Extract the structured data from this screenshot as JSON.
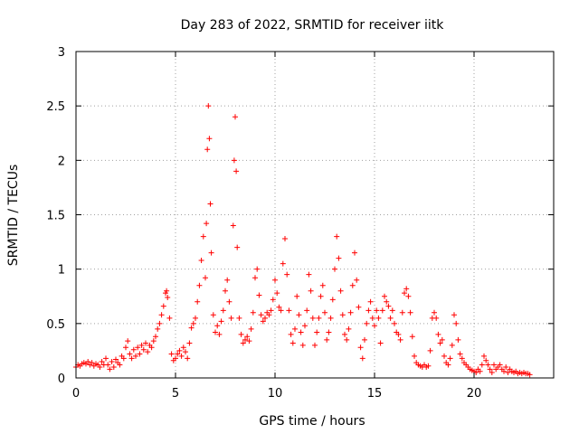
{
  "chart_data": {
    "type": "scatter",
    "title": "Day 283 of 2022, SRMTID for receiver iitk",
    "xlabel": "GPS time / hours",
    "ylabel": "SRMTID / TECUs",
    "xlim": [
      0,
      24
    ],
    "ylim": [
      0,
      3
    ],
    "xticks": [
      0,
      5,
      10,
      15,
      20
    ],
    "xtick_labels": [
      "0",
      "5",
      "10",
      "15",
      "20"
    ],
    "yticks": [
      0,
      0.5,
      1,
      1.5,
      2,
      2.5,
      3
    ],
    "ytick_labels": [
      "0",
      "0.5",
      "1",
      "1.5",
      "2",
      "2.5",
      "3"
    ],
    "grid": true,
    "marker": "+",
    "color": "#ff0000",
    "series": [
      {
        "name": "SRMTID",
        "points": [
          [
            0.0,
            0.1
          ],
          [
            0.1,
            0.12
          ],
          [
            0.2,
            0.11
          ],
          [
            0.3,
            0.13
          ],
          [
            0.4,
            0.14
          ],
          [
            0.5,
            0.13
          ],
          [
            0.6,
            0.15
          ],
          [
            0.7,
            0.12
          ],
          [
            0.8,
            0.14
          ],
          [
            0.9,
            0.11
          ],
          [
            1.0,
            0.13
          ],
          [
            1.1,
            0.12
          ],
          [
            1.2,
            0.1
          ],
          [
            1.3,
            0.15
          ],
          [
            1.4,
            0.12
          ],
          [
            1.5,
            0.18
          ],
          [
            1.6,
            0.12
          ],
          [
            1.7,
            0.08
          ],
          [
            1.8,
            0.15
          ],
          [
            1.9,
            0.1
          ],
          [
            2.0,
            0.17
          ],
          [
            2.1,
            0.14
          ],
          [
            2.2,
            0.12
          ],
          [
            2.3,
            0.2
          ],
          [
            2.4,
            0.18
          ],
          [
            2.5,
            0.28
          ],
          [
            2.6,
            0.34
          ],
          [
            2.7,
            0.22
          ],
          [
            2.8,
            0.18
          ],
          [
            2.9,
            0.26
          ],
          [
            3.0,
            0.2
          ],
          [
            3.1,
            0.28
          ],
          [
            3.2,
            0.22
          ],
          [
            3.3,
            0.3
          ],
          [
            3.4,
            0.26
          ],
          [
            3.5,
            0.32
          ],
          [
            3.6,
            0.24
          ],
          [
            3.7,
            0.3
          ],
          [
            3.8,
            0.28
          ],
          [
            3.9,
            0.34
          ],
          [
            4.0,
            0.38
          ],
          [
            4.1,
            0.45
          ],
          [
            4.2,
            0.5
          ],
          [
            4.3,
            0.58
          ],
          [
            4.4,
            0.66
          ],
          [
            4.5,
            0.78
          ],
          [
            4.55,
            0.8
          ],
          [
            4.6,
            0.74
          ],
          [
            4.7,
            0.55
          ],
          [
            4.8,
            0.22
          ],
          [
            4.9,
            0.16
          ],
          [
            5.0,
            0.18
          ],
          [
            5.1,
            0.22
          ],
          [
            5.2,
            0.25
          ],
          [
            5.3,
            0.2
          ],
          [
            5.4,
            0.28
          ],
          [
            5.5,
            0.24
          ],
          [
            5.6,
            0.18
          ],
          [
            5.7,
            0.32
          ],
          [
            5.8,
            0.46
          ],
          [
            5.9,
            0.5
          ],
          [
            6.0,
            0.55
          ],
          [
            6.1,
            0.7
          ],
          [
            6.2,
            0.85
          ],
          [
            6.3,
            1.08
          ],
          [
            6.4,
            1.3
          ],
          [
            6.5,
            0.92
          ],
          [
            6.55,
            1.42
          ],
          [
            6.6,
            2.1
          ],
          [
            6.65,
            2.5
          ],
          [
            6.7,
            2.2
          ],
          [
            6.75,
            1.6
          ],
          [
            6.8,
            1.15
          ],
          [
            6.9,
            0.58
          ],
          [
            7.0,
            0.42
          ],
          [
            7.1,
            0.48
          ],
          [
            7.2,
            0.4
          ],
          [
            7.3,
            0.52
          ],
          [
            7.4,
            0.62
          ],
          [
            7.5,
            0.8
          ],
          [
            7.6,
            0.9
          ],
          [
            7.7,
            0.7
          ],
          [
            7.8,
            0.55
          ],
          [
            7.9,
            1.4
          ],
          [
            7.95,
            2.0
          ],
          [
            8.0,
            2.4
          ],
          [
            8.05,
            1.9
          ],
          [
            8.1,
            1.2
          ],
          [
            8.2,
            0.55
          ],
          [
            8.3,
            0.4
          ],
          [
            8.4,
            0.32
          ],
          [
            8.5,
            0.35
          ],
          [
            8.6,
            0.38
          ],
          [
            8.7,
            0.34
          ],
          [
            8.8,
            0.45
          ],
          [
            8.9,
            0.6
          ],
          [
            9.0,
            0.92
          ],
          [
            9.1,
            1.0
          ],
          [
            9.2,
            0.76
          ],
          [
            9.3,
            0.58
          ],
          [
            9.4,
            0.52
          ],
          [
            9.5,
            0.55
          ],
          [
            9.6,
            0.6
          ],
          [
            9.7,
            0.58
          ],
          [
            9.8,
            0.62
          ],
          [
            9.9,
            0.72
          ],
          [
            10.0,
            0.9
          ],
          [
            10.1,
            0.78
          ],
          [
            10.2,
            0.65
          ],
          [
            10.3,
            0.62
          ],
          [
            10.4,
            1.05
          ],
          [
            10.5,
            1.28
          ],
          [
            10.6,
            0.95
          ],
          [
            10.7,
            0.62
          ],
          [
            10.8,
            0.4
          ],
          [
            10.9,
            0.32
          ],
          [
            11.0,
            0.45
          ],
          [
            11.1,
            0.75
          ],
          [
            11.2,
            0.58
          ],
          [
            11.3,
            0.42
          ],
          [
            11.4,
            0.3
          ],
          [
            11.5,
            0.48
          ],
          [
            11.6,
            0.62
          ],
          [
            11.7,
            0.95
          ],
          [
            11.8,
            0.8
          ],
          [
            11.9,
            0.55
          ],
          [
            12.0,
            0.3
          ],
          [
            12.1,
            0.42
          ],
          [
            12.2,
            0.55
          ],
          [
            12.3,
            0.75
          ],
          [
            12.4,
            0.85
          ],
          [
            12.5,
            0.6
          ],
          [
            12.6,
            0.35
          ],
          [
            12.7,
            0.42
          ],
          [
            12.8,
            0.55
          ],
          [
            12.9,
            0.72
          ],
          [
            13.0,
            1.0
          ],
          [
            13.1,
            1.3
          ],
          [
            13.2,
            1.1
          ],
          [
            13.3,
            0.8
          ],
          [
            13.4,
            0.58
          ],
          [
            13.5,
            0.4
          ],
          [
            13.6,
            0.35
          ],
          [
            13.7,
            0.45
          ],
          [
            13.8,
            0.6
          ],
          [
            13.9,
            0.85
          ],
          [
            14.0,
            1.15
          ],
          [
            14.1,
            0.9
          ],
          [
            14.2,
            0.65
          ],
          [
            14.3,
            0.28
          ],
          [
            14.4,
            0.18
          ],
          [
            14.5,
            0.35
          ],
          [
            14.6,
            0.5
          ],
          [
            14.7,
            0.62
          ],
          [
            14.8,
            0.7
          ],
          [
            14.9,
            0.55
          ],
          [
            15.0,
            0.48
          ],
          [
            15.1,
            0.62
          ],
          [
            15.2,
            0.55
          ],
          [
            15.3,
            0.32
          ],
          [
            15.4,
            0.62
          ],
          [
            15.5,
            0.75
          ],
          [
            15.6,
            0.7
          ],
          [
            15.7,
            0.66
          ],
          [
            15.8,
            0.55
          ],
          [
            15.9,
            0.62
          ],
          [
            16.0,
            0.5
          ],
          [
            16.1,
            0.42
          ],
          [
            16.2,
            0.4
          ],
          [
            16.3,
            0.35
          ],
          [
            16.4,
            0.6
          ],
          [
            16.5,
            0.78
          ],
          [
            16.6,
            0.82
          ],
          [
            16.7,
            0.75
          ],
          [
            16.8,
            0.6
          ],
          [
            16.9,
            0.38
          ],
          [
            17.0,
            0.2
          ],
          [
            17.1,
            0.14
          ],
          [
            17.2,
            0.12
          ],
          [
            17.3,
            0.11
          ],
          [
            17.4,
            0.1
          ],
          [
            17.5,
            0.12
          ],
          [
            17.6,
            0.1
          ],
          [
            17.7,
            0.11
          ],
          [
            17.8,
            0.25
          ],
          [
            17.9,
            0.55
          ],
          [
            18.0,
            0.6
          ],
          [
            18.1,
            0.55
          ],
          [
            18.2,
            0.4
          ],
          [
            18.3,
            0.32
          ],
          [
            18.4,
            0.35
          ],
          [
            18.5,
            0.2
          ],
          [
            18.6,
            0.14
          ],
          [
            18.7,
            0.12
          ],
          [
            18.8,
            0.18
          ],
          [
            18.9,
            0.3
          ],
          [
            19.0,
            0.58
          ],
          [
            19.1,
            0.5
          ],
          [
            19.2,
            0.35
          ],
          [
            19.3,
            0.22
          ],
          [
            19.4,
            0.18
          ],
          [
            19.5,
            0.14
          ],
          [
            19.6,
            0.12
          ],
          [
            19.7,
            0.1
          ],
          [
            19.8,
            0.08
          ],
          [
            19.9,
            0.07
          ],
          [
            20.0,
            0.06
          ],
          [
            20.1,
            0.05
          ],
          [
            20.2,
            0.08
          ],
          [
            20.3,
            0.06
          ],
          [
            20.4,
            0.12
          ],
          [
            20.5,
            0.2
          ],
          [
            20.6,
            0.16
          ],
          [
            20.7,
            0.12
          ],
          [
            20.8,
            0.08
          ],
          [
            20.9,
            0.05
          ],
          [
            21.0,
            0.12
          ],
          [
            21.1,
            0.08
          ],
          [
            21.2,
            0.1
          ],
          [
            21.3,
            0.12
          ],
          [
            21.4,
            0.08
          ],
          [
            21.5,
            0.06
          ],
          [
            21.6,
            0.1
          ],
          [
            21.7,
            0.05
          ],
          [
            21.8,
            0.08
          ],
          [
            21.9,
            0.06
          ],
          [
            22.0,
            0.05
          ],
          [
            22.1,
            0.06
          ],
          [
            22.2,
            0.04
          ],
          [
            22.3,
            0.05
          ],
          [
            22.4,
            0.04
          ],
          [
            22.5,
            0.05
          ],
          [
            22.6,
            0.04
          ],
          [
            22.7,
            0.04
          ],
          [
            22.8,
            0.03
          ]
        ]
      }
    ]
  }
}
